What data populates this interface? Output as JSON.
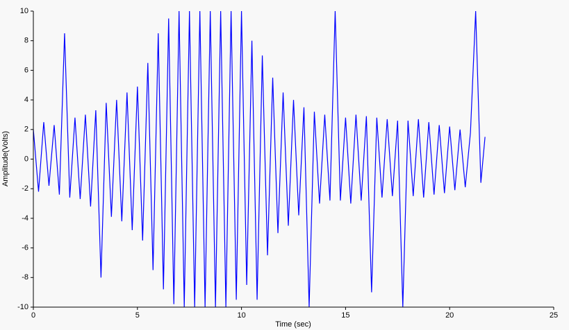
{
  "chart_data": {
    "type": "line",
    "x_label": "Time (sec)",
    "y_label": "Amplitude(Volts)",
    "x": [
      0,
      0.25,
      0.5,
      0.75,
      1,
      1.25,
      1.5,
      1.75,
      2,
      2.25,
      2.5,
      2.75,
      3,
      3.25,
      3.5,
      3.75,
      4,
      4.25,
      4.5,
      4.75,
      5,
      5.25,
      5.5,
      5.75,
      6,
      6.25,
      6.5,
      6.75,
      7,
      7.25,
      7.5,
      7.75,
      8,
      8.25,
      8.5,
      8.75,
      9,
      9.25,
      9.5,
      9.75,
      10,
      10.25,
      10.5,
      10.75,
      11,
      11.25,
      11.5,
      11.75,
      12,
      12.25,
      12.5,
      12.75,
      13,
      13.25,
      13.5,
      13.75,
      14,
      14.25,
      14.5,
      14.75,
      15,
      15.25,
      15.5,
      15.75,
      16,
      16.25,
      16.5,
      16.75,
      17,
      17.25,
      17.5,
      17.75,
      18,
      18.25,
      18.5,
      18.75,
      19,
      19.25,
      19.5,
      19.75,
      20,
      20.25,
      20.5,
      20.75,
      21,
      21.25,
      21.5,
      21.7
    ],
    "values": [
      2,
      -2.2,
      2.5,
      -1.8,
      2.3,
      -2.4,
      8.5,
      -2.6,
      2.8,
      -2.7,
      3,
      -3.2,
      3.3,
      -8,
      3.8,
      -3.9,
      4,
      -4.2,
      4.5,
      -4.8,
      4.9,
      -5.5,
      6.5,
      -7.5,
      8.5,
      -8.8,
      9.5,
      -9.8,
      10,
      -10,
      10,
      -10,
      10,
      -10,
      10,
      -10,
      10,
      -10,
      10,
      -9.5,
      10,
      -8.5,
      8,
      -9.5,
      7,
      -6.5,
      5.5,
      -5,
      4.5,
      -4.5,
      4,
      -3.8,
      3.5,
      -10,
      3.2,
      -3,
      3,
      -2.8,
      10,
      -2.8,
      2.8,
      -3,
      3,
      -2.8,
      2.9,
      -9,
      2.8,
      -2.6,
      2.7,
      -2.5,
      2.6,
      -10,
      2.6,
      -2.5,
      2.7,
      -2.6,
      2.5,
      -2.4,
      2.3,
      -2.3,
      2.2,
      -2.1,
      2,
      -1.9,
      1.8,
      10,
      -1.6,
      1.5
    ],
    "color": "#0000ff",
    "xlim": [
      0,
      25
    ],
    "xticks": [
      0,
      5,
      10,
      15,
      20,
      25
    ],
    "ylim": [
      -10,
      10
    ],
    "yticks": [
      -10,
      -8,
      -6,
      -4,
      -2,
      0,
      2,
      4,
      6,
      8,
      10
    ]
  }
}
